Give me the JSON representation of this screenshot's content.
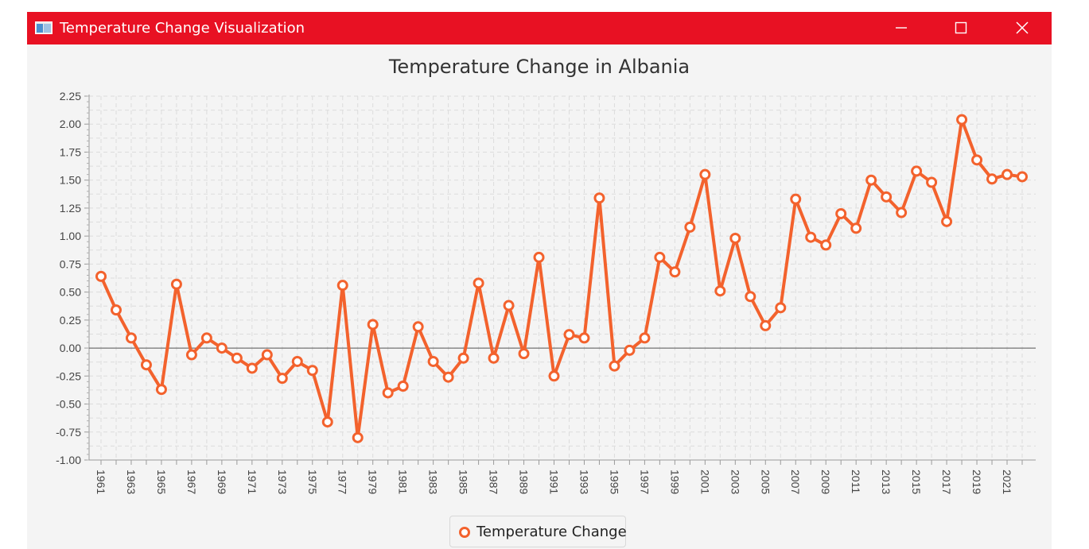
{
  "window": {
    "title": "Temperature Change Visualization",
    "titlebar_color": "#e81123",
    "controls": [
      "minimize-icon",
      "maximize-icon",
      "close-icon"
    ]
  },
  "chart_data": {
    "type": "line",
    "title": "Temperature Change in Albania",
    "xlabel": "",
    "ylabel": "",
    "ylim": [
      -1.0,
      2.25
    ],
    "y_ticks": [
      "-1.00",
      "-0.75",
      "-0.50",
      "-0.25",
      "0.00",
      "0.25",
      "0.50",
      "0.75",
      "1.00",
      "1.25",
      "1.50",
      "1.75",
      "2.00",
      "2.25"
    ],
    "x_tick_labels": [
      "1961",
      "1963",
      "1965",
      "1967",
      "1969",
      "1971",
      "1973",
      "1975",
      "1977",
      "1979",
      "1981",
      "1983",
      "1985",
      "1987",
      "1989",
      "1991",
      "1993",
      "1995",
      "1997",
      "1999",
      "2001",
      "2003",
      "2005",
      "2007",
      "2009",
      "2011",
      "2013",
      "2015",
      "2017",
      "2019",
      "2021"
    ],
    "grid": true,
    "legend_position": "bottom",
    "series": [
      {
        "name": "Temperature Change",
        "color": "#f3622d",
        "x": [
          1961,
          1962,
          1963,
          1964,
          1965,
          1966,
          1967,
          1968,
          1969,
          1970,
          1971,
          1972,
          1973,
          1974,
          1975,
          1976,
          1977,
          1978,
          1979,
          1980,
          1981,
          1982,
          1983,
          1984,
          1985,
          1986,
          1987,
          1988,
          1989,
          1990,
          1991,
          1992,
          1993,
          1994,
          1995,
          1996,
          1997,
          1998,
          1999,
          2000,
          2001,
          2002,
          2003,
          2004,
          2005,
          2006,
          2007,
          2008,
          2009,
          2010,
          2011,
          2012,
          2013,
          2014,
          2015,
          2016,
          2017,
          2018,
          2019,
          2020,
          2021,
          2022
        ],
        "values": [
          0.64,
          0.34,
          0.09,
          -0.15,
          -0.37,
          0.57,
          -0.06,
          0.09,
          0.0,
          -0.09,
          -0.18,
          -0.06,
          -0.27,
          -0.12,
          -0.2,
          -0.66,
          0.56,
          -0.8,
          0.21,
          -0.4,
          -0.34,
          0.19,
          -0.12,
          -0.26,
          -0.09,
          0.58,
          -0.09,
          0.38,
          -0.05,
          0.81,
          -0.25,
          0.12,
          0.09,
          1.34,
          -0.16,
          -0.02,
          0.09,
          0.81,
          0.68,
          1.08,
          1.55,
          0.51,
          0.98,
          0.46,
          0.2,
          0.36,
          1.33,
          0.99,
          0.92,
          1.2,
          1.07,
          1.5,
          1.35,
          1.21,
          1.58,
          1.48,
          1.13,
          2.04,
          1.68,
          1.51,
          1.55,
          1.53
        ]
      }
    ]
  }
}
